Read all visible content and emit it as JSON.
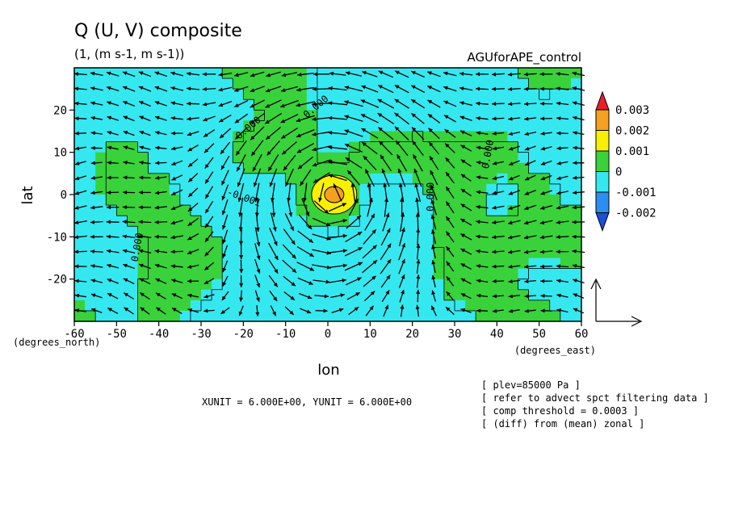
{
  "chart_data": {
    "type": "heatmap",
    "title": "Q (U, V) composite",
    "subtitle": "(1, (m s-1, m s-1))",
    "dataset_label": "AGUforAPE_control",
    "xlabel": "lon",
    "ylabel": "lat",
    "x_unit_label": "(degrees_east)",
    "y_unit_label": "(degrees_north)",
    "xlim": [
      -60,
      60
    ],
    "ylim": [
      -30,
      30
    ],
    "x_ticks": [
      -60,
      -50,
      -40,
      -30,
      -20,
      -10,
      0,
      10,
      20,
      30,
      40,
      50,
      60
    ],
    "y_ticks": [
      -20,
      -10,
      0,
      10,
      20
    ],
    "colorbar": {
      "labels": [
        "0.003",
        "0.002",
        "0.001",
        "0",
        "-0.001",
        "-0.002"
      ],
      "levels": [
        0.003,
        0.002,
        0.001,
        0,
        -0.001,
        -0.002
      ],
      "colors": [
        "#e8202a",
        "#f5a020",
        "#f8f000",
        "#39d23a",
        "#35e8f0",
        "#2a8ff0",
        "#1a50d8"
      ]
    },
    "contour_labels": [
      "0.000",
      "0.000",
      "-0.001",
      "0.000",
      "0.000",
      "0.000"
    ],
    "field": {
      "lon": [
        -60,
        -50,
        -40,
        -30,
        -20,
        -10,
        0,
        10,
        20,
        30,
        40,
        50,
        60
      ],
      "lat": [
        30,
        20,
        10,
        0,
        -10,
        -20,
        -30
      ],
      "values": [
        [
          -0.0005,
          -0.0004,
          -0.0006,
          -0.0003,
          0.0004,
          0.0006,
          -0.0004,
          -0.0006,
          -0.0003,
          -0.0004,
          -0.0002,
          0.0004,
          0.0003
        ],
        [
          -0.0006,
          -0.0005,
          -0.0007,
          -0.0004,
          -0.0002,
          0.0005,
          -0.0003,
          -0.0006,
          -0.0005,
          -0.0004,
          -0.0005,
          -0.0004,
          -0.0006
        ],
        [
          -0.0005,
          0.0004,
          -0.0003,
          -0.0004,
          0.0003,
          0.0004,
          -0.0002,
          0.0004,
          0.0005,
          0.0003,
          0.0004,
          -0.0003,
          -0.0005
        ],
        [
          -0.0004,
          0.0003,
          0.0003,
          -0.0004,
          -0.0005,
          -0.0004,
          0.0015,
          -0.0004,
          -0.0003,
          0.0004,
          -0.0003,
          0.0003,
          -0.0004
        ],
        [
          -0.0003,
          -0.0005,
          0.0004,
          0.0003,
          -0.0004,
          -0.0005,
          -0.0004,
          -0.0005,
          -0.0004,
          0.0004,
          0.0003,
          0.0004,
          0.0012
        ],
        [
          -0.0005,
          -0.0004,
          0.0004,
          0.0003,
          -0.0005,
          -0.0006,
          -0.0005,
          -0.0004,
          -0.0006,
          0.0004,
          0.0003,
          -0.0004,
          -0.0005
        ],
        [
          0.0004,
          -0.0003,
          0.0004,
          -0.0005,
          -0.0004,
          -0.0003,
          -0.0005,
          -0.0004,
          -0.0005,
          -0.0004,
          0.0003,
          0.0004,
          -0.0004
        ]
      ]
    },
    "vector_reference": {
      "xunit": 6.0,
      "yunit": 6.0
    },
    "grid": false,
    "legend": "right"
  },
  "footer": {
    "units_text": "XUNIT = 6.000E+00, YUNIT = 6.000E+00",
    "notes": [
      "[ plev=85000 Pa ]",
      "[ refer to advect spct filtering data ]",
      "[ comp threshold = 0.0003 ]",
      "[ (diff) from (mean) zonal ]"
    ]
  }
}
